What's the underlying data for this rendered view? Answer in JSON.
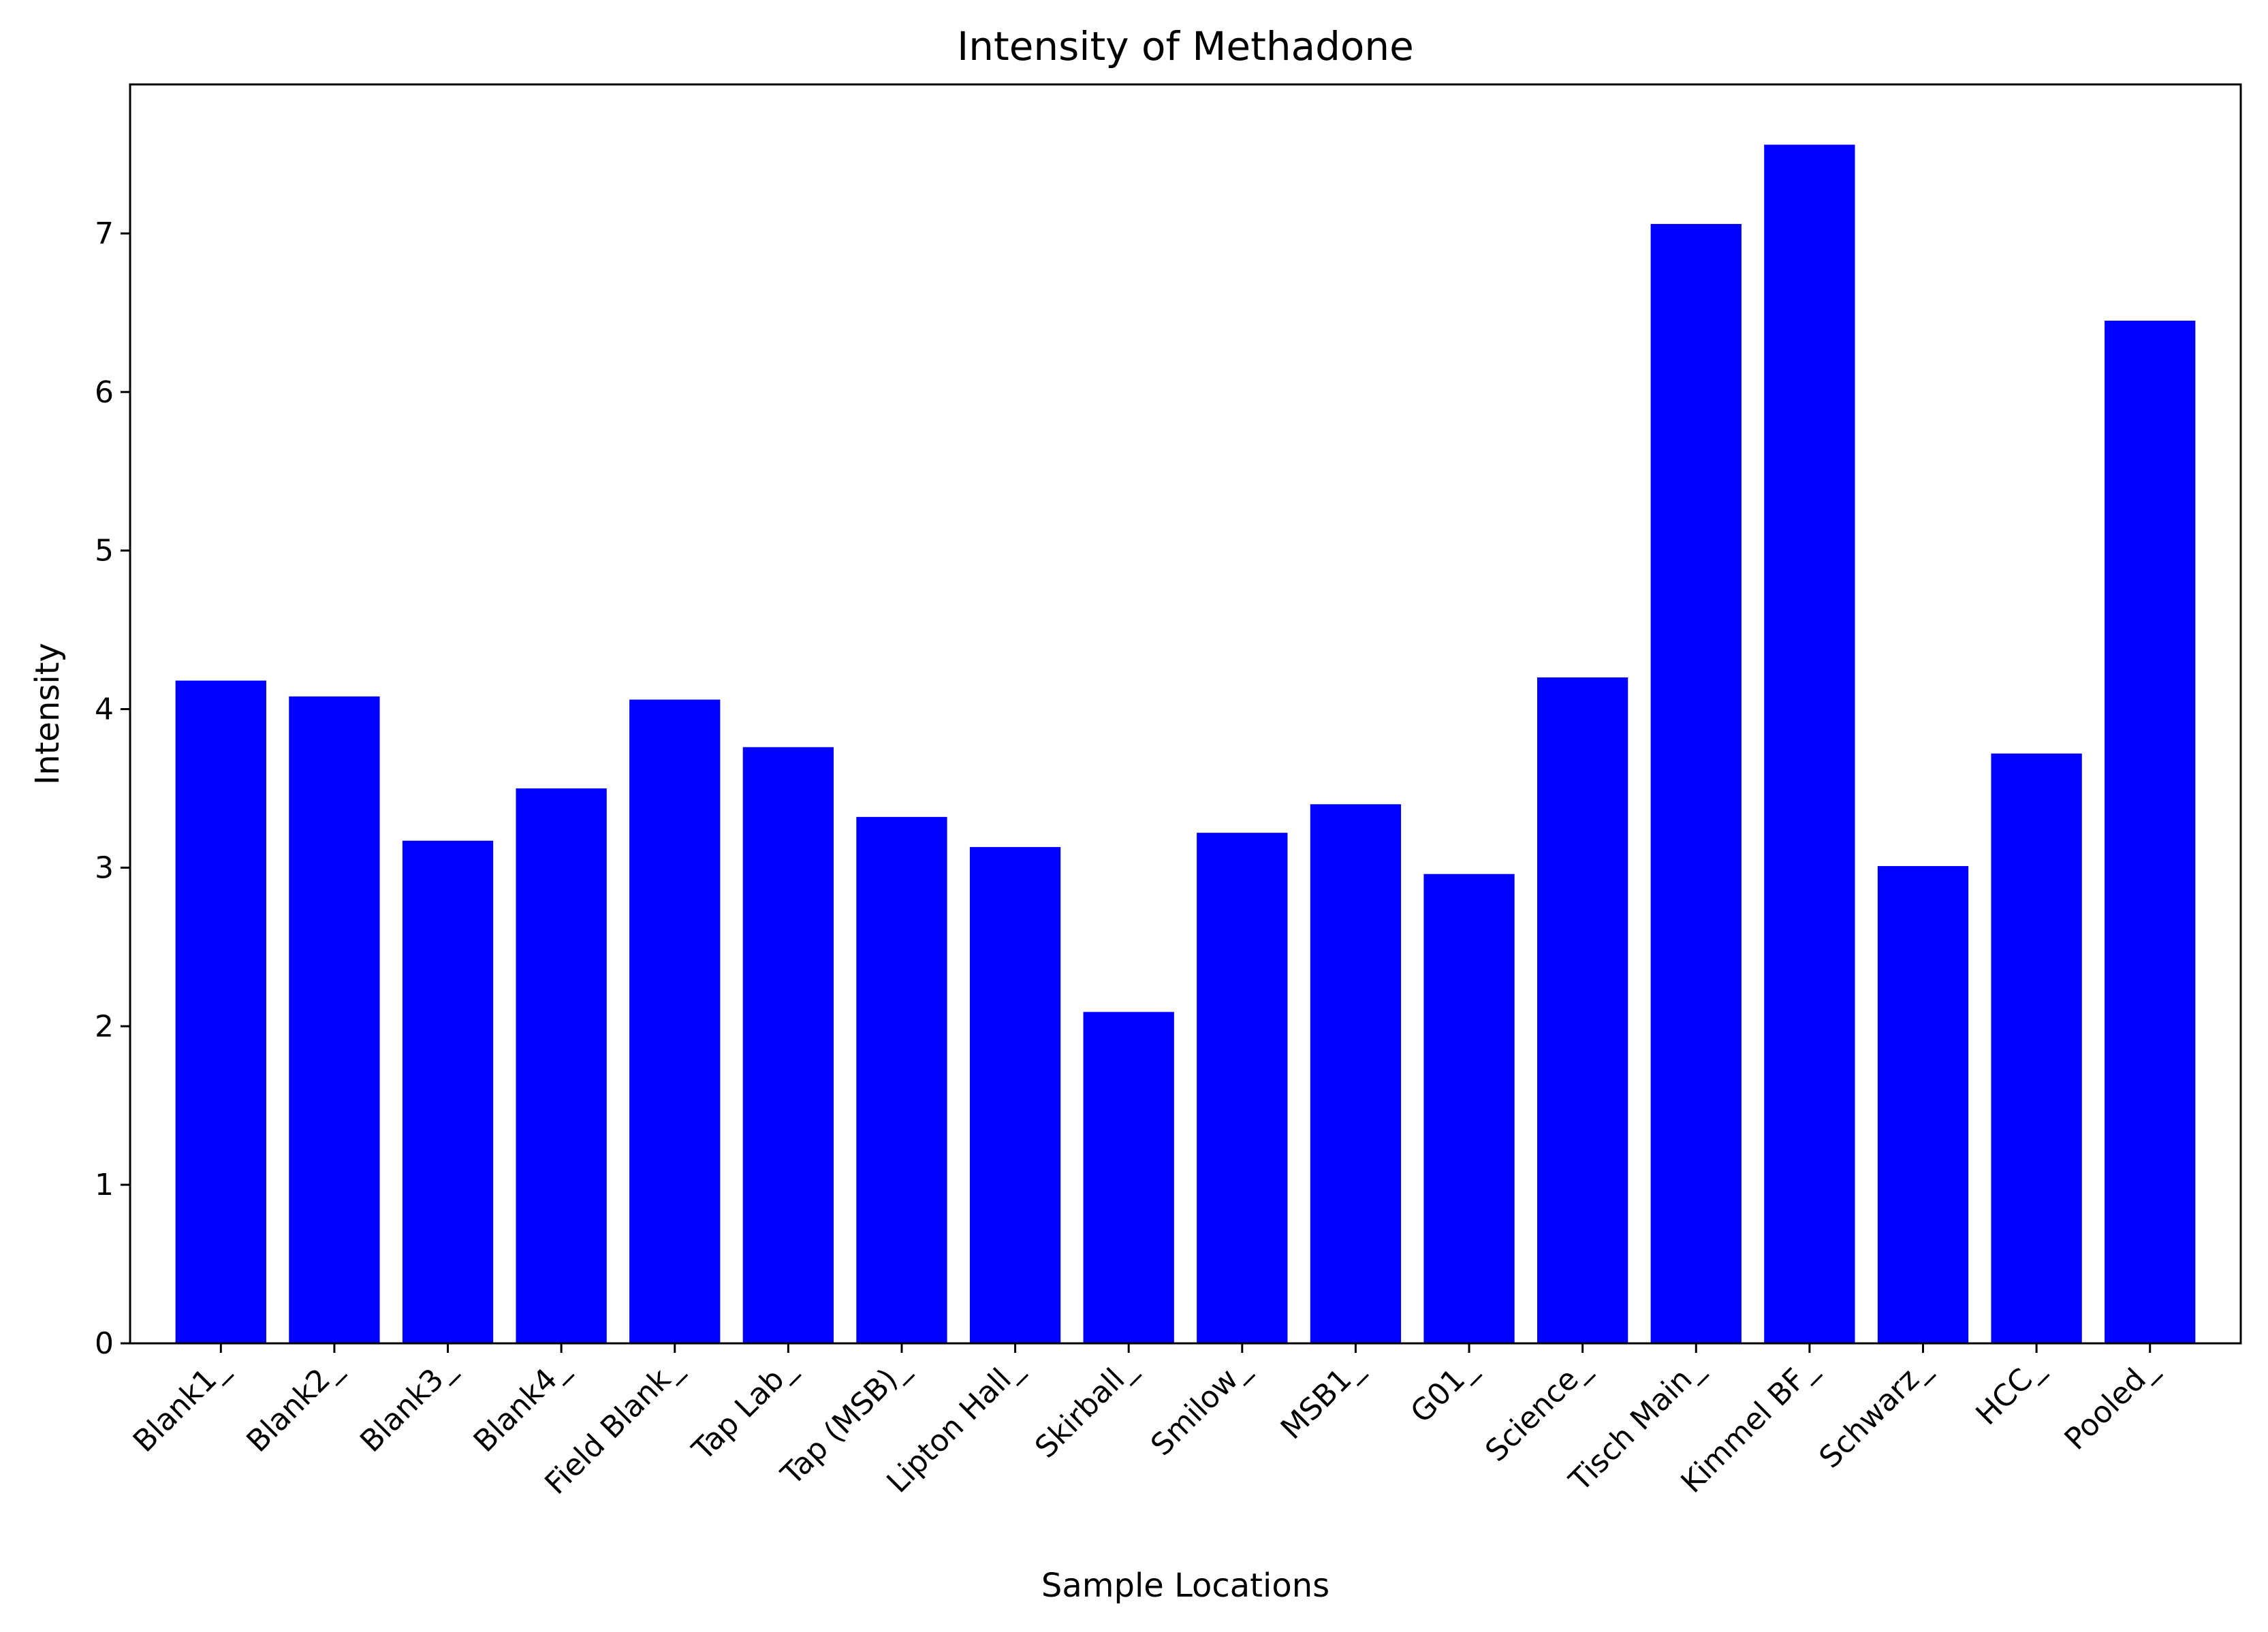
{
  "chart_data": {
    "type": "bar",
    "title": "Intensity of Methadone",
    "xlabel": "Sample Locations",
    "ylabel": "Intensity",
    "categories": [
      "Blank1_",
      "Blank2_",
      "Blank3_",
      "Blank4_",
      "Field Blank_",
      "Tap Lab_",
      "Tap (MSB)_",
      "Lipton Hall_",
      "Skirball_",
      "Smilow_",
      "MSB1_",
      "G01_",
      "Science_",
      "Tisch Main_",
      "Kimmel BF_",
      "Schwarz_",
      "HCC_",
      "Pooled_"
    ],
    "values": [
      4.18,
      4.08,
      3.17,
      3.5,
      4.06,
      3.76,
      3.32,
      3.13,
      2.09,
      3.22,
      3.4,
      2.96,
      4.2,
      7.06,
      7.56,
      3.01,
      3.72,
      6.45
    ],
    "ylim": [
      0,
      7.94
    ],
    "yticks": [
      0,
      1,
      2,
      3,
      4,
      5,
      6,
      7
    ],
    "bar_color": "#0000ff",
    "grid": false,
    "legend": false
  }
}
